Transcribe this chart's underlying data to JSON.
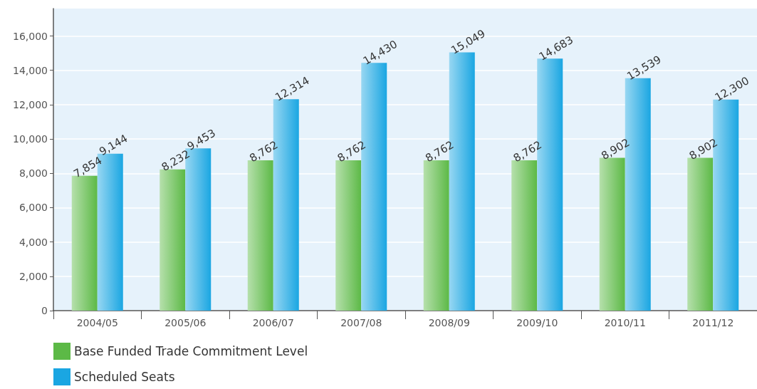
{
  "chart_data": {
    "type": "bar",
    "categories": [
      "2004/05",
      "2005/06",
      "2006/07",
      "2007/08",
      "2008/09",
      "2009/10",
      "2010/11",
      "2011/12"
    ],
    "series": [
      {
        "name": "Base Funded Trade Commitment Level",
        "color": "#5cb946",
        "values": [
          7854,
          8232,
          8762,
          8762,
          8762,
          8762,
          8902,
          8902
        ],
        "value_labels": [
          "7,854",
          "8,232",
          "8,762",
          "8,762",
          "8,762",
          "8,762",
          "8,902",
          "8,902"
        ]
      },
      {
        "name": "Scheduled Seats",
        "color": "#1aa6e2",
        "values": [
          9144,
          9453,
          12314,
          14430,
          15049,
          14683,
          13539,
          12300
        ],
        "value_labels": [
          "9,144",
          "9,453",
          "12,314",
          "14,430",
          "15,049",
          "14,683",
          "13,539",
          "12,300"
        ]
      }
    ],
    "ylim": [
      0,
      17600
    ],
    "yticks": [
      0,
      {
        "value": 2000,
        "label": "2,000"
      },
      {
        "value": 4000,
        "label": "4,000"
      },
      {
        "value": 6000,
        "label": "6,000"
      },
      {
        "value": 8000,
        "label": "8,000"
      },
      {
        "value": 10000,
        "label": "10,000"
      },
      {
        "value": 12000,
        "label": "12,000"
      },
      {
        "value": 14000,
        "label": "14,000"
      },
      {
        "value": 16000,
        "label": "16,000"
      }
    ],
    "grid": "y",
    "legend": "bottom left"
  }
}
